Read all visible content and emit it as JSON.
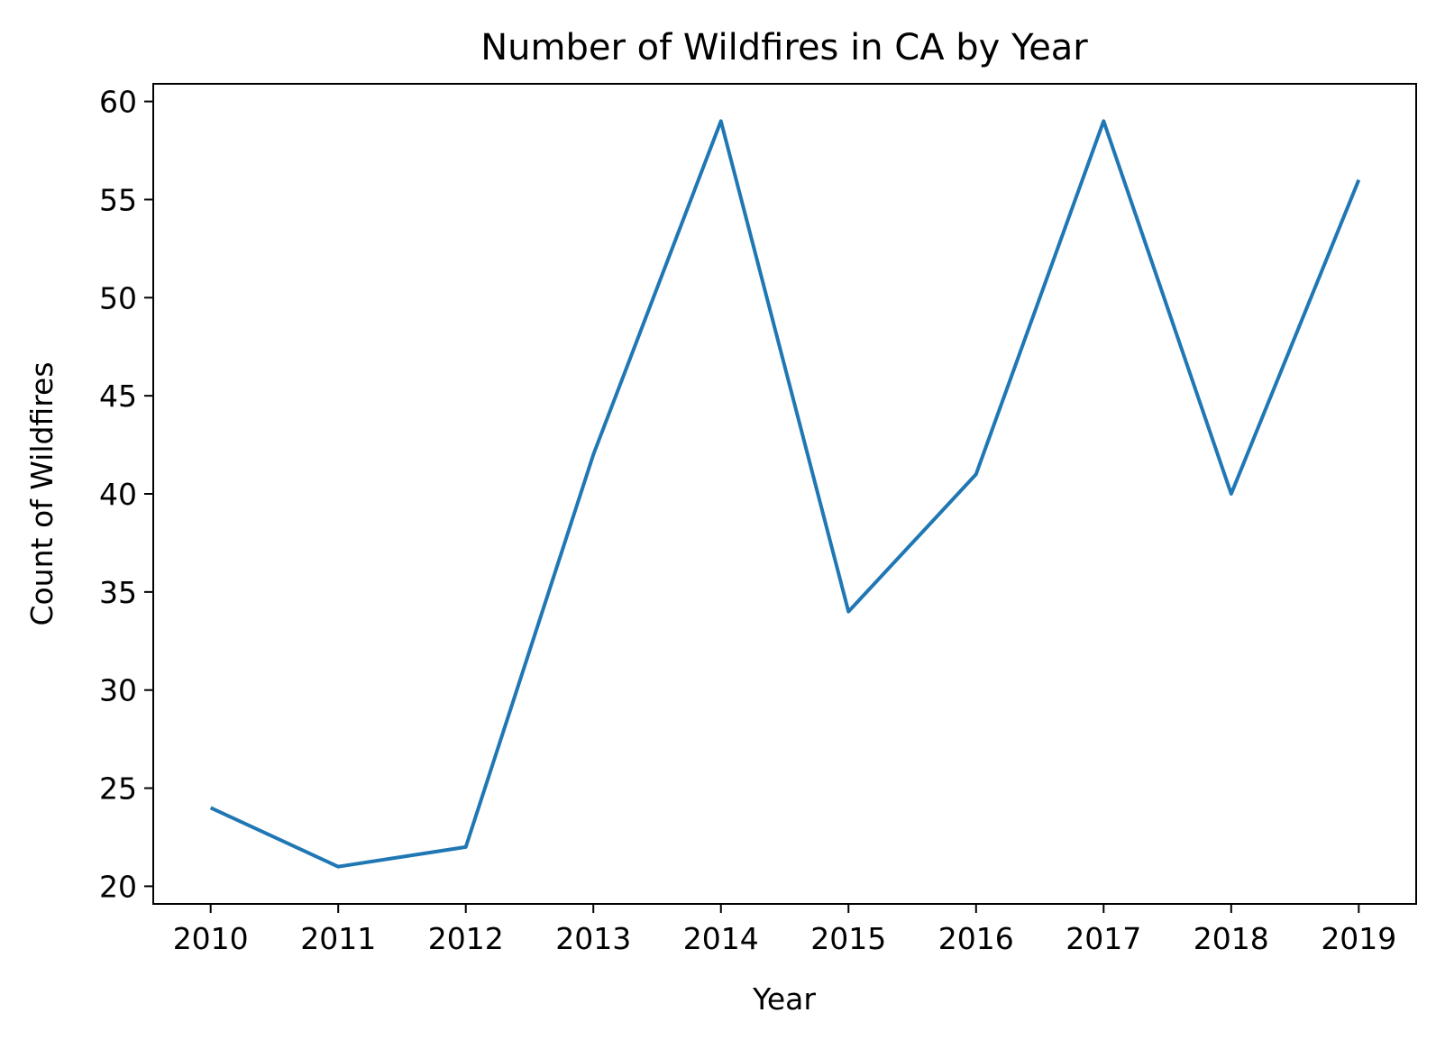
{
  "chart_data": {
    "type": "line",
    "title": "Number of Wildfires in CA by Year",
    "xlabel": "Year",
    "ylabel": "Count of Wildfires",
    "x": [
      2010,
      2011,
      2012,
      2013,
      2014,
      2015,
      2016,
      2017,
      2018,
      2019
    ],
    "x_tick_labels": [
      "2010",
      "2011",
      "2012",
      "2013",
      "2014",
      "2015",
      "2016",
      "2017",
      "2018",
      "2019"
    ],
    "series": [
      {
        "values": [
          24,
          21,
          22,
          42,
          59,
          34,
          41,
          59,
          40,
          56
        ],
        "color": "#1f77b4"
      }
    ],
    "xlim": [
      2009.55,
      2019.45
    ],
    "ylim": [
      19.1,
      60.9
    ],
    "y_ticks": [
      20,
      25,
      30,
      35,
      40,
      45,
      50,
      55,
      60
    ],
    "y_tick_labels": [
      "20",
      "25",
      "30",
      "35",
      "40",
      "45",
      "50",
      "55",
      "60"
    ],
    "grid": false,
    "legend": "none"
  }
}
